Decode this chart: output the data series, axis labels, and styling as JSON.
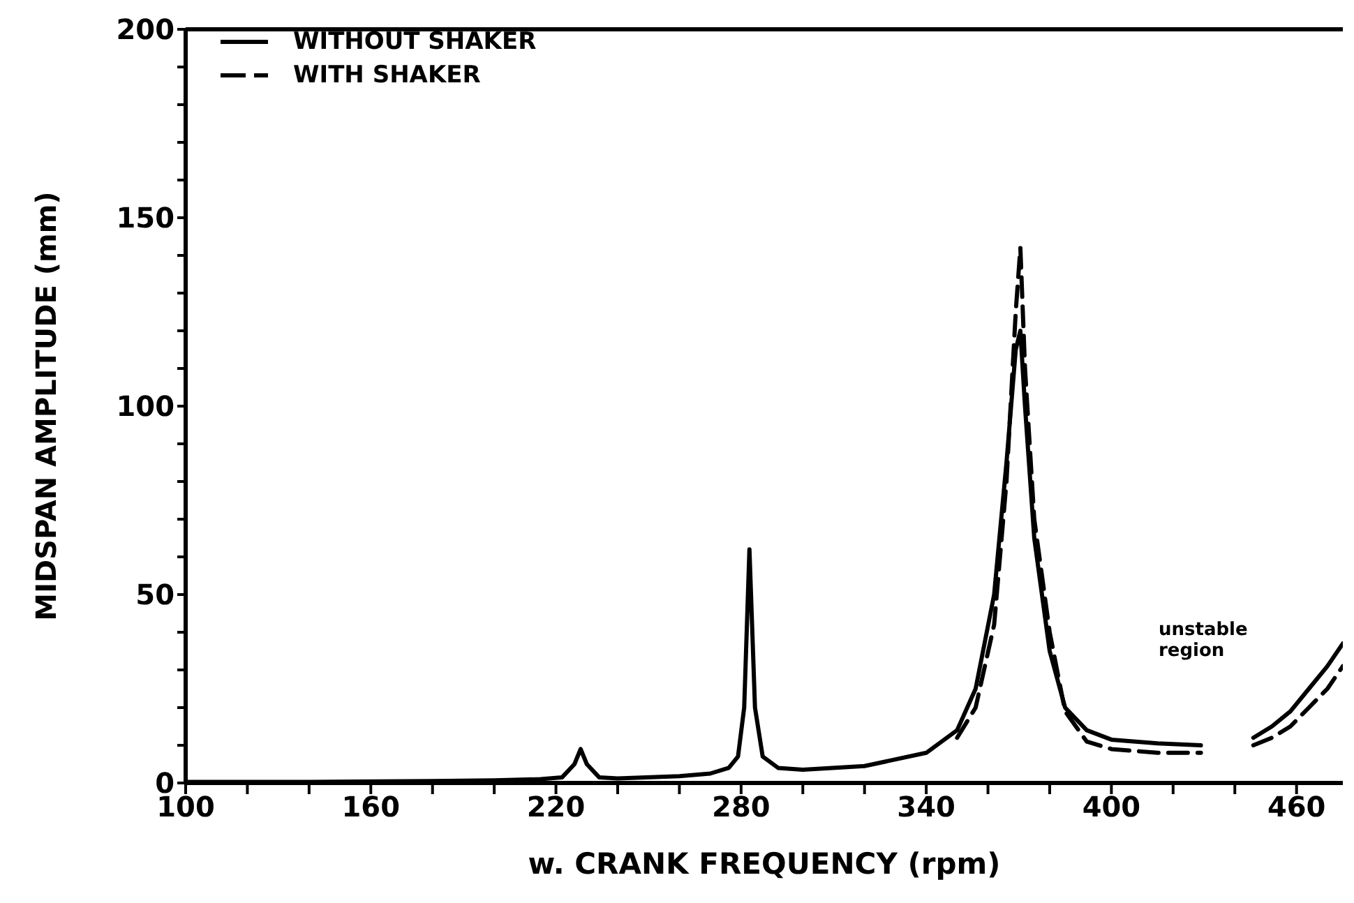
{
  "chart_data": {
    "type": "line",
    "xlabel": "w. CRANK FREQUENCY (rpm)",
    "ylabel": "MIDSPAN AMPLITUDE (mm)",
    "x": [
      100,
      140,
      180,
      200,
      215,
      222,
      226,
      228,
      230,
      234,
      240,
      260,
      270,
      276,
      279,
      281,
      282.7,
      284.5,
      287,
      292,
      300,
      320,
      340,
      350,
      356,
      362,
      366,
      369,
      370.5,
      372,
      375,
      380,
      385,
      392,
      400,
      415,
      429,
      437,
      446,
      452,
      458,
      464,
      470,
      475
    ],
    "series": [
      {
        "name": "WITHOUT SHAKER",
        "color": "#000000",
        "line_style": "solid",
        "values": [
          0.3,
          0.3,
          0.5,
          0.7,
          1,
          1.5,
          5,
          9,
          5,
          1.5,
          1.2,
          1.8,
          2.5,
          4,
          7,
          20,
          62,
          20,
          7,
          4,
          3.5,
          4.5,
          8,
          14,
          25,
          50,
          85,
          115,
          120,
          100,
          65,
          35,
          20,
          14,
          11.5,
          10.5,
          10,
          null,
          12,
          15,
          19,
          25,
          31,
          37
        ]
      },
      {
        "name": "WITH SHAKER",
        "color": "#000000",
        "line_style": "dashed",
        "values": [
          null,
          null,
          null,
          null,
          null,
          null,
          null,
          null,
          null,
          null,
          null,
          null,
          null,
          null,
          null,
          null,
          null,
          null,
          null,
          null,
          null,
          null,
          null,
          12,
          20,
          42,
          80,
          125,
          142,
          110,
          70,
          40,
          19,
          11,
          9,
          8,
          8,
          null,
          10,
          12,
          15,
          20,
          25,
          31
        ]
      }
    ],
    "annotations": [
      "unstable region"
    ],
    "xlim": [
      100,
      475
    ],
    "xticks": [
      100,
      {
        "value": 120,
        "label": null
      },
      {
        "value": 140,
        "label": null
      },
      160,
      {
        "value": 180,
        "label": null
      },
      {
        "value": 200,
        "label": null
      },
      220,
      {
        "value": 240,
        "label": null
      },
      {
        "value": 260,
        "label": null
      },
      280,
      {
        "value": 300,
        "label": null
      },
      {
        "value": 320,
        "label": null
      },
      340,
      {
        "value": 360,
        "label": null
      },
      {
        "value": 380,
        "label": null
      },
      400,
      {
        "value": 420,
        "label": null
      },
      {
        "value": 440,
        "label": null
      },
      460
    ],
    "ylim": [
      0,
      200
    ],
    "yticks": [
      0,
      {
        "value": 10,
        "label": null
      },
      {
        "value": 20,
        "label": null
      },
      {
        "value": 30,
        "label": null
      },
      {
        "value": 40,
        "label": null
      },
      50,
      {
        "value": 60,
        "label": null
      },
      {
        "value": 70,
        "label": null
      },
      {
        "value": 80,
        "label": null
      },
      {
        "value": 90,
        "label": null
      },
      100,
      {
        "value": 110,
        "label": null
      },
      {
        "value": 120,
        "label": null
      },
      {
        "value": 130,
        "label": null
      },
      {
        "value": 140,
        "label": null
      },
      150,
      {
        "value": 160,
        "label": null
      },
      {
        "value": 170,
        "label": null
      },
      {
        "value": 180,
        "label": null
      },
      {
        "value": 190,
        "label": null
      },
      200
    ],
    "grid": false,
    "legend": "top left",
    "marker": "none"
  }
}
